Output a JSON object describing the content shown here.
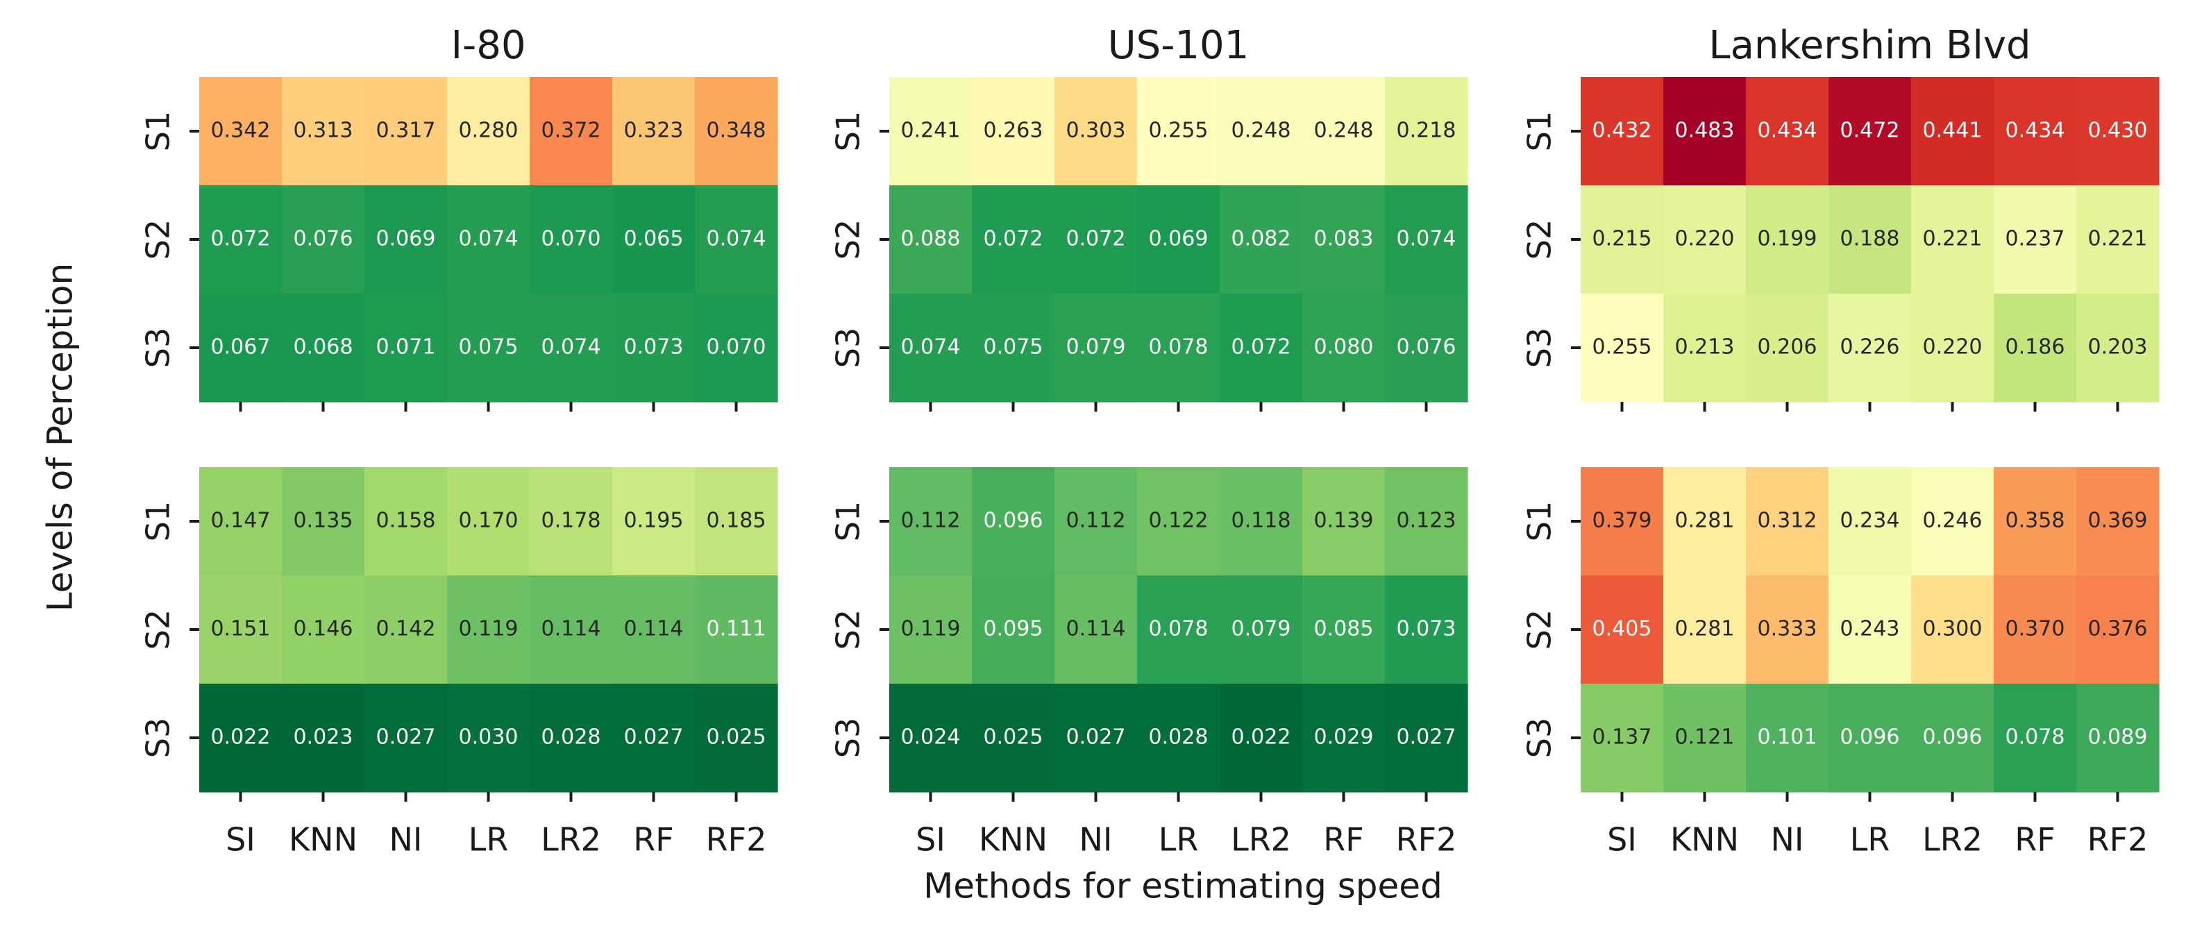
{
  "chart_data": {
    "type": "heatmap",
    "ylabel": "Levels of Perception",
    "xlabel": "Methods for estimating speed",
    "x_categories": [
      "SI",
      "KNN",
      "NI",
      "LR",
      "LR2",
      "RF",
      "RF2"
    ],
    "y_categories": [
      "S1",
      "S2",
      "S3"
    ],
    "colormap": "RdYlGn_r",
    "panels": [
      {
        "title": "I-80",
        "row": 0,
        "col": 0,
        "values": [
          [
            0.342,
            0.313,
            0.317,
            0.28,
            0.372,
            0.323,
            0.348
          ],
          [
            0.072,
            0.076,
            0.069,
            0.074,
            0.07,
            0.065,
            0.074
          ],
          [
            0.067,
            0.068,
            0.071,
            0.075,
            0.074,
            0.073,
            0.07
          ]
        ],
        "labels": [
          [
            "0.342",
            "0.313",
            "0.317",
            "0.280",
            "0.372",
            "0.323",
            "0.348"
          ],
          [
            "0.072",
            "0.076",
            "0.069",
            "0.074",
            "0.070",
            "0.065",
            "0.074"
          ],
          [
            "0.067",
            "0.068",
            "0.071",
            "0.075",
            "0.074",
            "0.073",
            "0.070"
          ]
        ]
      },
      {
        "title": "US-101",
        "row": 0,
        "col": 1,
        "values": [
          [
            0.241,
            0.263,
            0.303,
            0.255,
            0.248,
            0.248,
            0.218
          ],
          [
            0.088,
            0.072,
            0.072,
            0.069,
            0.082,
            0.083,
            0.074
          ],
          [
            0.074,
            0.075,
            0.079,
            0.078,
            0.072,
            0.08,
            0.076
          ]
        ],
        "labels": [
          [
            "0.241",
            "0.263",
            "0.303",
            "0.255",
            "0.248",
            "0.248",
            "0.218"
          ],
          [
            "0.088",
            "0.072",
            "0.072",
            "0.069",
            "0.082",
            "0.083",
            "0.074"
          ],
          [
            "0.074",
            "0.075",
            "0.079",
            "0.078",
            "0.072",
            "0.080",
            "0.076"
          ]
        ]
      },
      {
        "title": "Lankershim Blvd",
        "row": 0,
        "col": 2,
        "values": [
          [
            0.432,
            0.483,
            0.434,
            0.472,
            0.441,
            0.434,
            0.43
          ],
          [
            0.215,
            0.22,
            0.199,
            0.188,
            0.221,
            0.237,
            0.221
          ],
          [
            0.255,
            0.213,
            0.206,
            0.226,
            0.22,
            0.186,
            0.203
          ]
        ],
        "labels": [
          [
            "0.432",
            "0.483",
            "0.434",
            "0.472",
            "0.441",
            "0.434",
            "0.430"
          ],
          [
            "0.215",
            "0.220",
            "0.199",
            "0.188",
            "0.221",
            "0.237",
            "0.221"
          ],
          [
            "0.255",
            "0.213",
            "0.206",
            "0.226",
            "0.220",
            "0.186",
            "0.203"
          ]
        ]
      },
      {
        "title": "",
        "row": 1,
        "col": 0,
        "values": [
          [
            0.147,
            0.135,
            0.158,
            0.17,
            0.178,
            0.195,
            0.185
          ],
          [
            0.151,
            0.146,
            0.142,
            0.119,
            0.114,
            0.114,
            0.111
          ],
          [
            0.022,
            0.023,
            0.027,
            0.03,
            0.028,
            0.027,
            0.025
          ]
        ],
        "labels": [
          [
            "0.147",
            "0.135",
            "0.158",
            "0.170",
            "0.178",
            "0.195",
            "0.185"
          ],
          [
            "0.151",
            "0.146",
            "0.142",
            "0.119",
            "0.114",
            "0.114",
            "0.111"
          ],
          [
            "0.022",
            "0.023",
            "0.027",
            "0.030",
            "0.028",
            "0.027",
            "0.025"
          ]
        ]
      },
      {
        "title": "",
        "row": 1,
        "col": 1,
        "values": [
          [
            0.112,
            0.096,
            0.112,
            0.122,
            0.118,
            0.139,
            0.123
          ],
          [
            0.119,
            0.095,
            0.114,
            0.078,
            0.079,
            0.085,
            0.073
          ],
          [
            0.024,
            0.025,
            0.027,
            0.028,
            0.022,
            0.029,
            0.027
          ]
        ],
        "labels": [
          [
            "0.112",
            "0.096",
            "0.112",
            "0.122",
            "0.118",
            "0.139",
            "0.123"
          ],
          [
            "0.119",
            "0.095",
            "0.114",
            "0.078",
            "0.079",
            "0.085",
            "0.073"
          ],
          [
            "0.024",
            "0.025",
            "0.027",
            "0.028",
            "0.022",
            "0.029",
            "0.027"
          ]
        ]
      },
      {
        "title": "",
        "row": 1,
        "col": 2,
        "values": [
          [
            0.379,
            0.281,
            0.312,
            0.234,
            0.246,
            0.358,
            0.369
          ],
          [
            0.405,
            0.281,
            0.333,
            0.243,
            0.3,
            0.37,
            0.376
          ],
          [
            0.137,
            0.121,
            0.101,
            0.096,
            0.096,
            0.078,
            0.089
          ]
        ],
        "labels": [
          [
            "0.379",
            "0.281",
            "0.312",
            "0.234",
            "0.246",
            "0.358",
            "0.369"
          ],
          [
            "0.405",
            "0.281",
            "0.333",
            "0.243",
            "0.300",
            "0.370",
            "0.376"
          ],
          [
            "0.137",
            "0.121",
            "0.101",
            "0.096",
            "0.096",
            "0.078",
            "0.089"
          ]
        ]
      }
    ]
  }
}
